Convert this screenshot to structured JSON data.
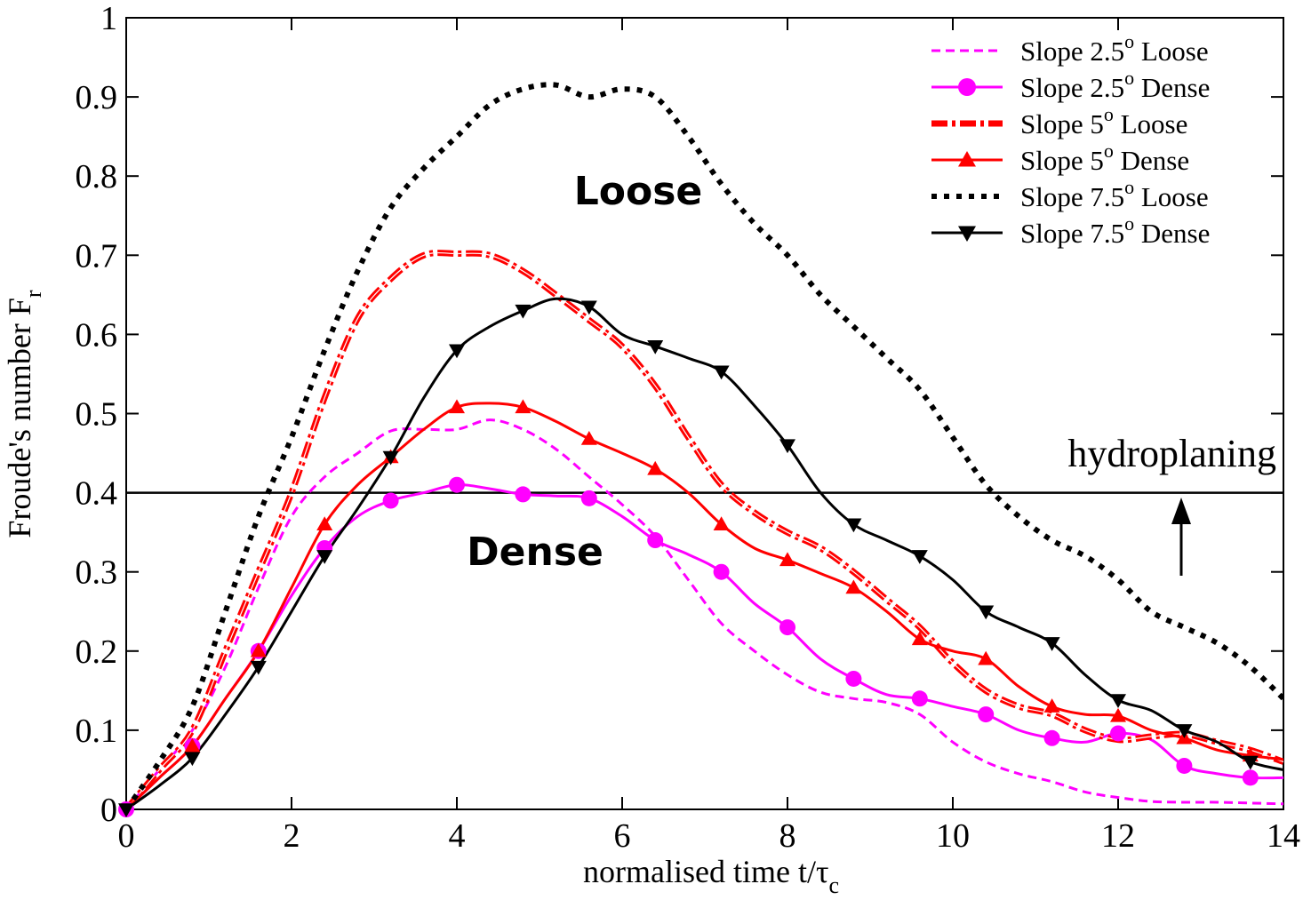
{
  "chart_data": {
    "type": "line",
    "xlabel": "normalised time t/τ",
    "xlabel_sub": "c",
    "ylabel": "Froude's number F",
    "ylabel_sub": "r",
    "xlim": [
      0,
      14
    ],
    "ylim": [
      0,
      1
    ],
    "x_ticks": [
      "0",
      "2",
      "4",
      "6",
      "8",
      "10",
      "12",
      "14"
    ],
    "y_ticks": [
      "0",
      "0.1",
      "0.2",
      "0.3",
      "0.4",
      "0.5",
      "0.6",
      "0.7",
      "0.8",
      "0.9",
      "1"
    ],
    "grid": false,
    "legend_position": "top-right",
    "annotations": {
      "loose": "Loose",
      "dense": "Dense",
      "hydroplaning": "hydroplaning",
      "threshold": 0.4
    },
    "series": [
      {
        "name": "Slope 2.5° Loose",
        "legend": {
          "prefix": "Slope 2.5",
          "sup": "o",
          "suffix": " Loose"
        },
        "color": "#ff00ff",
        "style": "dashed",
        "width": 3,
        "marker": "none",
        "x": [
          0,
          0.4,
          0.8,
          1.2,
          1.6,
          2.0,
          2.4,
          2.8,
          3.2,
          3.6,
          4.0,
          4.4,
          4.8,
          5.2,
          5.6,
          6.0,
          6.4,
          6.8,
          7.2,
          7.6,
          8.0,
          8.4,
          8.8,
          9.2,
          9.6,
          10.0,
          10.4,
          10.8,
          11.2,
          11.6,
          12.0,
          12.4,
          12.8,
          13.2,
          13.6,
          14.0
        ],
        "y": [
          0,
          0.05,
          0.1,
          0.18,
          0.28,
          0.37,
          0.42,
          0.45,
          0.478,
          0.48,
          0.48,
          0.492,
          0.48,
          0.455,
          0.42,
          0.385,
          0.345,
          0.29,
          0.235,
          0.2,
          0.17,
          0.148,
          0.14,
          0.135,
          0.12,
          0.085,
          0.06,
          0.045,
          0.035,
          0.022,
          0.015,
          0.01,
          0.009,
          0.009,
          0.008,
          0.007
        ]
      },
      {
        "name": "Slope 2.5° Dense",
        "legend": {
          "prefix": "Slope 2.5",
          "sup": "o",
          "suffix": " Dense"
        },
        "color": "#ff00ff",
        "style": "solid",
        "width": 3,
        "marker": "circle",
        "x": [
          0,
          0.4,
          0.8,
          1.2,
          1.6,
          2.0,
          2.4,
          2.8,
          3.2,
          3.6,
          4.0,
          4.4,
          4.8,
          5.2,
          5.6,
          6.0,
          6.4,
          6.8,
          7.2,
          7.6,
          8.0,
          8.4,
          8.8,
          9.2,
          9.6,
          10.0,
          10.4,
          10.8,
          11.2,
          11.6,
          12.0,
          12.4,
          12.8,
          13.2,
          13.6,
          14.0
        ],
        "y": [
          0,
          0.04,
          0.08,
          0.14,
          0.2,
          0.27,
          0.33,
          0.37,
          0.39,
          0.4,
          0.41,
          0.405,
          0.398,
          0.396,
          0.393,
          0.37,
          0.34,
          0.322,
          0.3,
          0.26,
          0.23,
          0.19,
          0.165,
          0.145,
          0.14,
          0.13,
          0.12,
          0.1,
          0.09,
          0.085,
          0.096,
          0.088,
          0.055,
          0.045,
          0.04,
          0.04
        ],
        "marker_x": [
          0,
          0.8,
          1.6,
          2.4,
          3.2,
          4.0,
          4.8,
          5.6,
          6.4,
          7.2,
          8.0,
          8.8,
          9.6,
          10.4,
          11.2,
          12.0,
          12.8,
          13.6
        ]
      },
      {
        "name": "Slope 5° Loose",
        "legend": {
          "prefix": "Slope 5",
          "sup": "o",
          "suffix": " Loose"
        },
        "color": "#ff0000",
        "style": "dashdot",
        "width": 7,
        "marker": "none",
        "x": [
          0,
          0.4,
          0.8,
          1.2,
          1.6,
          2.0,
          2.4,
          2.8,
          3.2,
          3.6,
          4.0,
          4.4,
          4.8,
          5.2,
          5.6,
          6.0,
          6.4,
          6.8,
          7.2,
          7.6,
          8.0,
          8.4,
          8.8,
          9.2,
          9.6,
          10.0,
          10.4,
          10.8,
          11.2,
          11.6,
          12.0,
          12.4,
          12.8,
          13.2,
          13.6,
          14.0
        ],
        "y": [
          0,
          0.05,
          0.1,
          0.2,
          0.3,
          0.4,
          0.52,
          0.62,
          0.67,
          0.7,
          0.702,
          0.7,
          0.68,
          0.65,
          0.618,
          0.585,
          0.535,
          0.47,
          0.41,
          0.375,
          0.35,
          0.33,
          0.3,
          0.265,
          0.23,
          0.185,
          0.15,
          0.13,
          0.12,
          0.1,
          0.088,
          0.092,
          0.095,
          0.085,
          0.075,
          0.06
        ]
      },
      {
        "name": "Slope 5° Dense",
        "legend": {
          "prefix": "Slope 5",
          "sup": "o",
          "suffix": " Dense"
        },
        "color": "#ff0000",
        "style": "solid",
        "width": 3,
        "marker": "triangle-up",
        "x": [
          0,
          0.4,
          0.8,
          1.2,
          1.6,
          2.0,
          2.4,
          2.8,
          3.2,
          3.6,
          4.0,
          4.4,
          4.8,
          5.2,
          5.6,
          6.0,
          6.4,
          6.8,
          7.2,
          7.6,
          8.0,
          8.4,
          8.8,
          9.2,
          9.6,
          10.0,
          10.4,
          10.8,
          11.2,
          11.6,
          12.0,
          12.4,
          12.8,
          13.2,
          13.6,
          14.0
        ],
        "y": [
          0,
          0.04,
          0.08,
          0.14,
          0.2,
          0.28,
          0.36,
          0.41,
          0.445,
          0.48,
          0.508,
          0.513,
          0.508,
          0.49,
          0.468,
          0.45,
          0.43,
          0.4,
          0.36,
          0.33,
          0.315,
          0.298,
          0.28,
          0.25,
          0.215,
          0.2,
          0.19,
          0.155,
          0.13,
          0.12,
          0.118,
          0.1,
          0.09,
          0.075,
          0.068,
          0.063
        ],
        "marker_x": [
          0.8,
          1.6,
          2.4,
          3.2,
          4.0,
          4.8,
          5.6,
          6.4,
          7.2,
          8.0,
          8.8,
          9.6,
          10.4,
          11.2,
          12.0,
          12.8,
          13.6
        ]
      },
      {
        "name": "Slope 7.5° Loose",
        "legend": {
          "prefix": "Slope 7.5",
          "sup": "o",
          "suffix": " Loose"
        },
        "color": "#000000",
        "style": "dotted",
        "width": 6,
        "marker": "none",
        "x": [
          0,
          0.4,
          0.8,
          1.2,
          1.6,
          2.0,
          2.4,
          2.8,
          3.2,
          3.6,
          4.0,
          4.4,
          4.8,
          5.2,
          5.6,
          6.0,
          6.4,
          6.8,
          7.2,
          7.6,
          8.0,
          8.4,
          8.8,
          9.2,
          9.6,
          10.0,
          10.4,
          10.8,
          11.2,
          11.6,
          12.0,
          12.4,
          12.8,
          13.2,
          13.6,
          14.0
        ],
        "y": [
          0,
          0.06,
          0.13,
          0.25,
          0.37,
          0.47,
          0.58,
          0.68,
          0.76,
          0.81,
          0.85,
          0.89,
          0.91,
          0.915,
          0.9,
          0.91,
          0.9,
          0.85,
          0.79,
          0.74,
          0.7,
          0.65,
          0.61,
          0.57,
          0.53,
          0.47,
          0.41,
          0.37,
          0.34,
          0.32,
          0.29,
          0.25,
          0.23,
          0.21,
          0.18,
          0.14
        ]
      },
      {
        "name": "Slope 7.5° Dense",
        "legend": {
          "prefix": "Slope 7.5",
          "sup": "o",
          "suffix": " Dense"
        },
        "color": "#000000",
        "style": "solid",
        "width": 3,
        "marker": "triangle-down",
        "x": [
          0,
          0.4,
          0.8,
          1.2,
          1.6,
          2.0,
          2.4,
          2.8,
          3.2,
          3.6,
          4.0,
          4.4,
          4.8,
          5.2,
          5.6,
          6.0,
          6.4,
          6.8,
          7.2,
          7.6,
          8.0,
          8.4,
          8.8,
          9.2,
          9.6,
          10.0,
          10.4,
          10.8,
          11.2,
          11.6,
          12.0,
          12.4,
          12.8,
          13.2,
          13.6,
          14.0
        ],
        "y": [
          0,
          0.03,
          0.065,
          0.12,
          0.18,
          0.25,
          0.32,
          0.38,
          0.445,
          0.52,
          0.58,
          0.61,
          0.63,
          0.645,
          0.635,
          0.6,
          0.585,
          0.57,
          0.553,
          0.51,
          0.46,
          0.4,
          0.36,
          0.34,
          0.32,
          0.29,
          0.25,
          0.23,
          0.21,
          0.17,
          0.138,
          0.125,
          0.1,
          0.085,
          0.06,
          0.05
        ],
        "marker_x": [
          0,
          0.8,
          1.6,
          2.4,
          3.2,
          4.0,
          4.8,
          5.6,
          6.4,
          7.2,
          8.0,
          8.8,
          9.6,
          10.4,
          11.2,
          12.0,
          12.8,
          13.6
        ]
      }
    ]
  }
}
